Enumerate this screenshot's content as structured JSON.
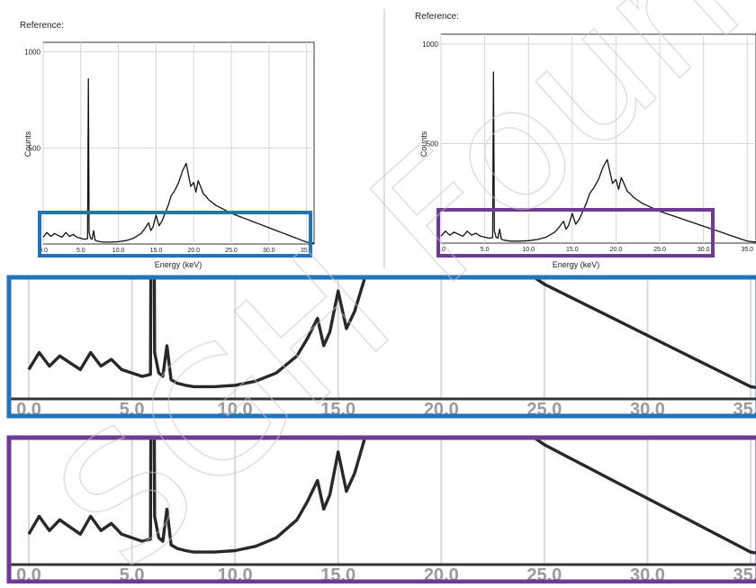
{
  "panels": [
    {
      "reference_label": "Reference:",
      "y_label": "Counts",
      "x_label": "Energy (keV)",
      "highlight_color": "#1f74bd"
    },
    {
      "reference_label": "Reference:",
      "y_label": "Counts",
      "x_label": "Energy (keV)",
      "highlight_color": "#6f3a96"
    }
  ],
  "zoom_strips": [
    {
      "border_color": "#1f74bd",
      "source": "left-panel"
    },
    {
      "border_color": "#6f3a96",
      "source": "right-panel"
    }
  ],
  "watermark": {
    "text": "SGH Foundation"
  },
  "chart_data": {
    "type": "line",
    "xlabel": "Energy (keV)",
    "ylabel": "Counts",
    "xlim": [
      0,
      36
    ],
    "ylim": [
      0,
      1050
    ],
    "x_ticks": [
      "0.0",
      "5.0",
      "10.0",
      "15.0",
      "20.0",
      "25.0",
      "30.0",
      "35.0"
    ],
    "y_ticks": [
      "500",
      "1000"
    ],
    "grid": true,
    "series": [
      {
        "x": [
          0,
          0.5,
          1,
          1.5,
          2,
          2.5,
          3,
          3.5,
          4,
          4.5,
          5,
          5.5,
          5.9,
          6.0,
          6.1,
          6.3,
          6.5,
          6.7,
          6.9,
          7.2,
          7.6,
          8,
          9,
          10,
          11,
          12,
          13,
          13.5,
          14,
          14.3,
          14.6,
          15,
          15.4,
          15.8,
          16.2,
          16.6,
          17,
          17.5,
          18,
          18.5,
          19.0,
          19.3,
          19.6,
          20.0,
          20.3,
          20.6,
          21.0,
          21.3,
          21.6,
          22,
          22.5,
          23,
          24,
          25,
          26,
          27,
          28,
          29,
          30,
          31,
          32,
          33,
          34,
          35,
          36
        ],
        "values": [
          35,
          60,
          40,
          55,
          45,
          35,
          60,
          40,
          50,
          35,
          30,
          25,
          28,
          860,
          60,
          30,
          25,
          70,
          20,
          15,
          12,
          10,
          10,
          12,
          18,
          30,
          55,
          80,
          110,
          70,
          90,
          150,
          95,
          120,
          160,
          200,
          250,
          280,
          320,
          380,
          420,
          360,
          300,
          320,
          270,
          330,
          290,
          260,
          250,
          230,
          215,
          200,
          180,
          160,
          145,
          130,
          115,
          100,
          85,
          70,
          55,
          40,
          25,
          10,
          5
        ]
      }
    ]
  }
}
